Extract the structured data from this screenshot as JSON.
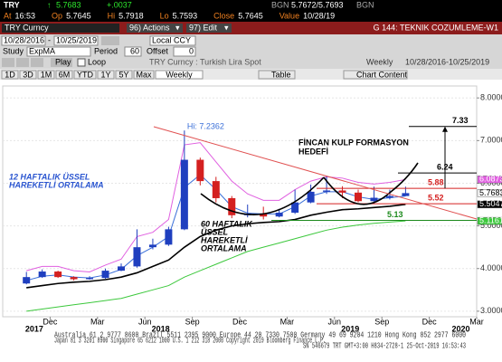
{
  "quote": {
    "ticker": "TRY",
    "price": "5.7683",
    "change": "+.0037",
    "bid_source": "BGN",
    "bid_ask": "5.7672/5.7693",
    "ask_source": "BGN"
  },
  "stats": [
    [
      "At",
      "16:53"
    ],
    [
      "Op",
      "5.7645"
    ],
    [
      "Hi",
      "5.7918"
    ],
    [
      "Lo",
      "5.7593"
    ],
    [
      "Close",
      "5.7645"
    ],
    [
      "Value",
      "10/28/19"
    ]
  ],
  "title_bar": {
    "security": "TRY Curncy",
    "actions": "96) Actions",
    "edit": "97) Edit",
    "page": "G 144: TEKNIK COZUMLEME-W1"
  },
  "controls": {
    "start": "10/28/2016",
    "separator": "-",
    "end": "10/25/2019",
    "currency": "Local CCY",
    "study_label": "Study",
    "study": "ExpMA",
    "period_label": "Period",
    "period": "60",
    "offset_label": "Offset",
    "offset": "0",
    "play": "Play",
    "loop": "Loop",
    "description": "TRY Curncy : Turkish Lira Spot",
    "frequency": "Weekly",
    "range": "10/28/2016-10/25/2019"
  },
  "tabs": [
    "1D",
    "3D",
    "1M",
    "6M",
    "YTD",
    "1Y",
    "5Y",
    "Max",
    "Weekly",
    "Table",
    "Chart Content"
  ],
  "chart_data": {
    "type": "candlestick",
    "x": [
      "2017-10",
      "2017-11",
      "2017-12",
      "2018-01",
      "2018-02",
      "2018-03",
      "2018-04",
      "2018-05",
      "2018-06",
      "2018-07",
      "2018-08",
      "2018-09",
      "2018-10",
      "2018-11",
      "2018-12",
      "2019-01",
      "2019-02",
      "2019-03",
      "2019-04",
      "2019-05",
      "2019-06",
      "2019-07",
      "2019-08",
      "2019-09",
      "2019-10"
    ],
    "open": [
      3.65,
      3.8,
      3.93,
      3.8,
      3.75,
      3.78,
      3.95,
      4.05,
      4.5,
      4.56,
      4.92,
      6.55,
      6.05,
      5.65,
      5.25,
      5.29,
      5.22,
      5.31,
      5.55,
      5.8,
      5.83,
      5.78,
      5.58,
      5.66,
      5.7
    ],
    "high": [
      3.92,
      3.98,
      3.95,
      3.82,
      3.82,
      4.0,
      4.12,
      4.92,
      4.7,
      4.98,
      7.2362,
      6.6,
      6.15,
      5.7,
      5.5,
      5.45,
      5.4,
      5.85,
      5.97,
      6.17,
      5.93,
      5.85,
      5.92,
      5.85,
      5.92
    ],
    "low": [
      3.63,
      3.78,
      3.78,
      3.72,
      3.74,
      3.76,
      3.94,
      4.02,
      4.45,
      4.53,
      4.9,
      5.95,
      5.55,
      5.18,
      5.2,
      5.15,
      5.2,
      5.28,
      5.53,
      5.75,
      5.65,
      5.55,
      5.52,
      5.62,
      5.7
    ],
    "close": [
      3.8,
      3.93,
      3.8,
      3.75,
      3.78,
      3.95,
      4.05,
      4.5,
      4.56,
      4.92,
      6.55,
      6.05,
      5.65,
      5.25,
      5.29,
      5.22,
      5.31,
      5.55,
      5.8,
      5.83,
      5.78,
      5.58,
      5.66,
      5.7,
      5.7683
    ],
    "up_color": "#1f3fbf",
    "down_color": "#d42020",
    "close_box_color": "#ffffff",
    "high_note": "Hi: 7.2362",
    "lines": [
      {
        "color": "#3a6fd8",
        "boxed": false,
        "values": [
          3.72,
          3.82,
          3.85,
          3.8,
          3.78,
          3.85,
          3.98,
          4.3,
          4.5,
          4.75,
          5.9,
          6.2,
          5.85,
          5.45,
          5.3,
          5.28,
          5.28,
          5.45,
          5.7,
          5.8,
          5.8,
          5.68,
          5.62,
          5.66,
          5.7
        ]
      },
      {
        "color": "#e060e0",
        "boxed": true,
        "values": [
          3.95,
          4.05,
          4.05,
          3.95,
          3.92,
          4.08,
          4.22,
          4.75,
          4.85,
          5.15,
          6.9,
          6.95,
          6.5,
          6.05,
          5.75,
          5.6,
          5.6,
          5.85,
          6.05,
          6.15,
          6.12,
          6.02,
          5.98,
          6.02,
          6.0873
        ]
      },
      {
        "color": "#000000",
        "boxed": true,
        "values": [
          3.55,
          3.6,
          3.65,
          3.68,
          3.7,
          3.74,
          3.8,
          3.9,
          4.05,
          4.2,
          4.5,
          4.75,
          4.9,
          5.0,
          5.05,
          5.08,
          5.1,
          5.15,
          5.25,
          5.32,
          5.38,
          5.4,
          5.43,
          5.46,
          5.5047
        ]
      },
      {
        "color": "#3cc83c",
        "boxed": true,
        "values": [
          3.0,
          3.05,
          3.1,
          3.15,
          3.2,
          3.25,
          3.3,
          3.4,
          3.5,
          3.6,
          3.8,
          3.95,
          4.1,
          4.25,
          4.4,
          4.5,
          4.6,
          4.7,
          4.8,
          4.9,
          4.97,
          5.02,
          5.06,
          5.09,
          5.1161
        ]
      }
    ],
    "levels": [
      {
        "value": 7.33,
        "color": "#000000"
      },
      {
        "value": 6.24,
        "color": "#000000"
      },
      {
        "value": 5.88,
        "color": "#d42020"
      },
      {
        "value": 5.52,
        "color": "#d42020"
      },
      {
        "value": 5.13,
        "color": "#1c8a1c"
      }
    ],
    "annotations": [
      {
        "text": [
          "FİNCAN KULP FORMASYON",
          "HEDEFİ"
        ],
        "color": "#000000"
      },
      {
        "text": [
          "12 HAFTALIK ÜSSEL",
          "HAREKETLİ ORTALAMA"
        ],
        "color": "#2a55d0"
      },
      {
        "text": [
          "60 HAFTALIK",
          "ÜSSEL",
          "HAREKETLİ",
          "ORTALAMA"
        ],
        "color": "#000000"
      }
    ],
    "xlim": [
      "2017-09",
      "2020-03"
    ],
    "ylim": [
      2.87,
      8.28
    ],
    "yticks": [
      {
        "value": 3,
        "label": "3.0000"
      },
      {
        "value": 4,
        "label": "4.0000"
      },
      {
        "value": 5,
        "label": "5.0000"
      },
      {
        "value": 6,
        "label": "6.0000"
      },
      {
        "value": 7,
        "label": "7.0000"
      },
      {
        "value": 8,
        "label": "8.0000"
      }
    ],
    "xticks": [
      {
        "value": "2017-12",
        "label": "Dec"
      },
      {
        "value": "2018-03",
        "label": "Mar"
      },
      {
        "value": "2018-06",
        "label": "Jun"
      },
      {
        "value": "2018-09",
        "label": "Sep"
      },
      {
        "value": "2018-12",
        "label": "Dec"
      },
      {
        "value": "2019-03",
        "label": "Mar"
      },
      {
        "value": "2019-06",
        "label": "Jun"
      },
      {
        "value": "2019-09",
        "label": "Sep"
      },
      {
        "value": "2019-12",
        "label": "Dec"
      },
      {
        "value": "2020-03",
        "label": "Mar"
      }
    ],
    "year_labels": [
      2017,
      2018,
      2019,
      2020
    ]
  },
  "footer": [
    "Australia 61 2 9777 8600 Brazil 5511 2395 9000 Europe 44 20 7330 7500 Germany 49 69 9204 1210 Hong Kong 852 2977 6000",
    "Japan 81 3 3201 8900 Singapore 65 6212 1000 U.S. 1 212 318 2000 Copyright 2019 Bloomberg Finance L.P.",
    "SN 546679 TRT GMT+3:00 H834-2728-1 25-Oct-2019 16:53:43"
  ]
}
